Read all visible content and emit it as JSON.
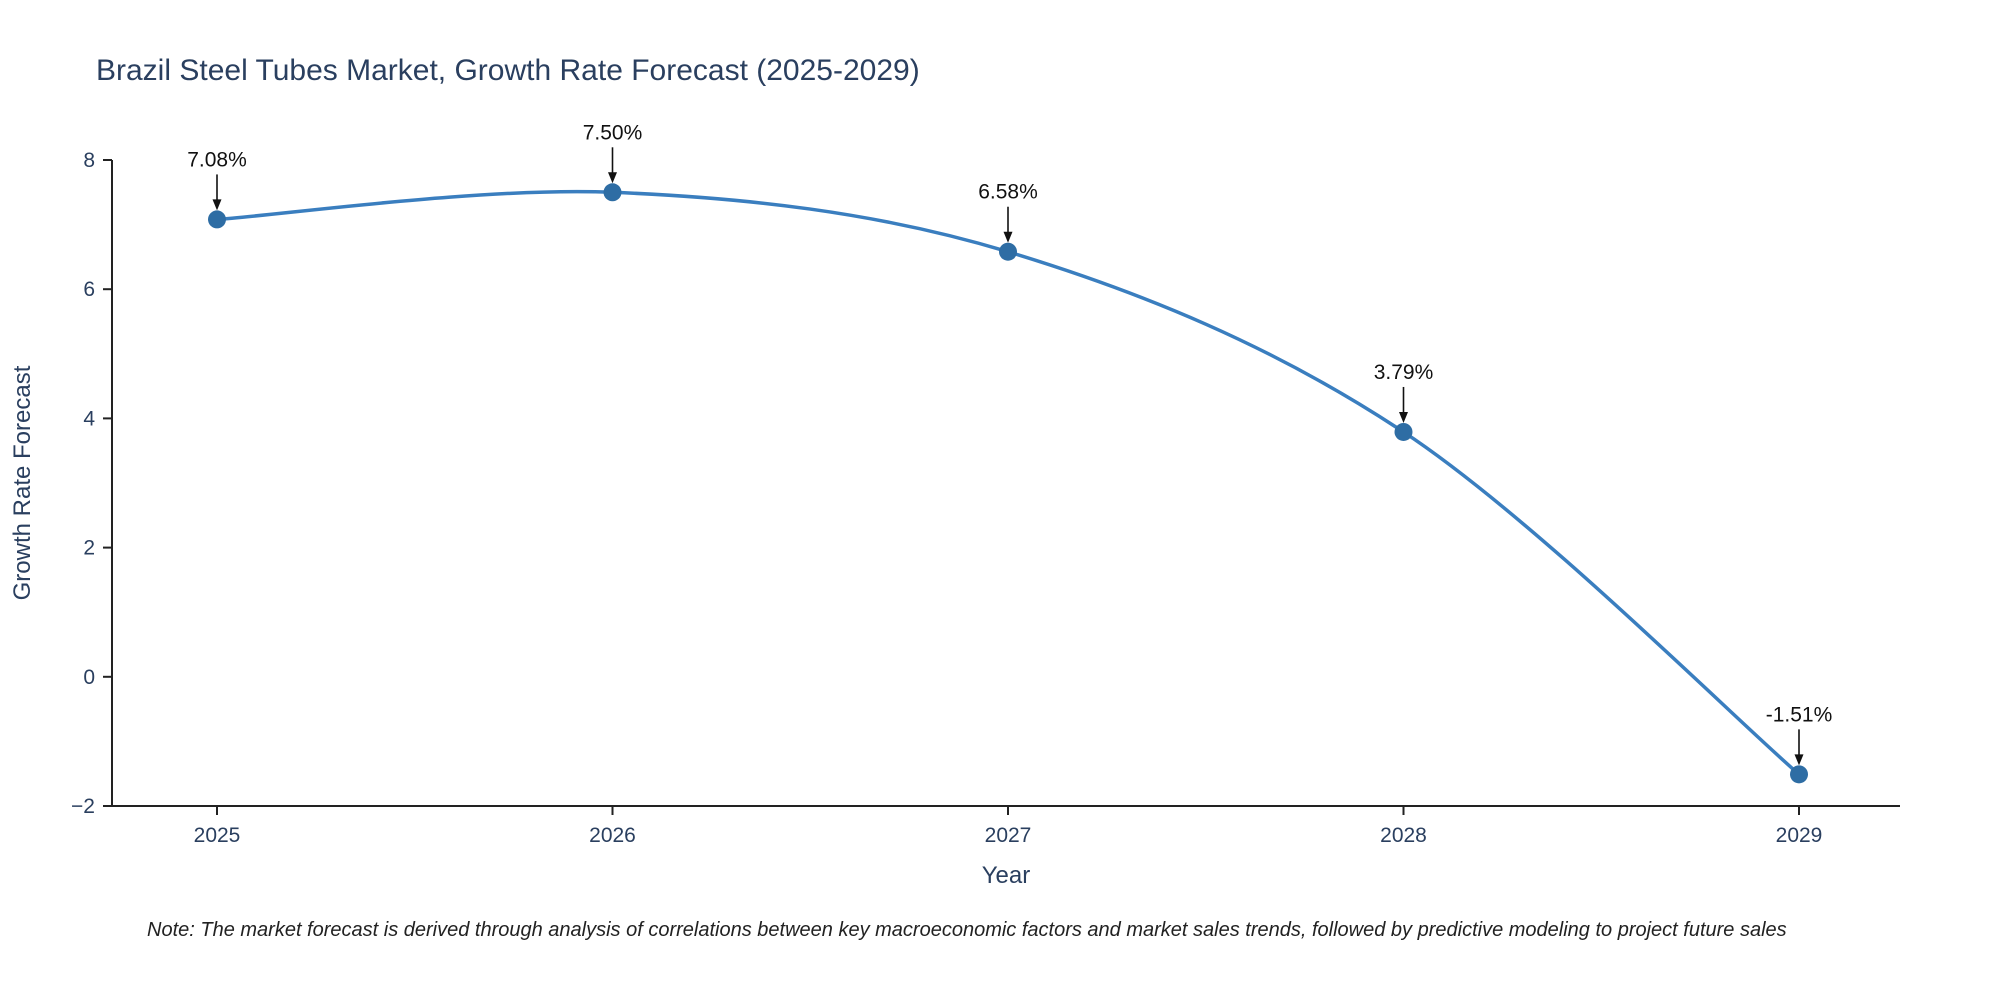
{
  "chart_data": {
    "type": "line",
    "title": "Brazil Steel Tubes Market, Growth Rate Forecast (2025-2029)",
    "xlabel": "Year",
    "ylabel": "Growth Rate Forecast",
    "x": [
      2025,
      2026,
      2027,
      2028,
      2029
    ],
    "values": [
      7.08,
      7.5,
      6.58,
      3.79,
      -1.51
    ],
    "labels": [
      "7.08%",
      "7.50%",
      "6.58%",
      "3.79%",
      "-1.51%"
    ],
    "ylim": [
      -2,
      8
    ],
    "yticks": [
      -2,
      0,
      2,
      4,
      6,
      8
    ],
    "line_shape": "spline",
    "grid": false,
    "legend": "none",
    "colors": {
      "line": "#3a7ebf",
      "marker": "#2e6da4",
      "title": "#2a3f5f",
      "axis": "#222222",
      "tick_label": "#2a3f5f",
      "axis_title": "#2a3f5f",
      "annotation": "#111111",
      "arrow": "#111111",
      "background": "#ffffff"
    }
  },
  "note": "Note: The market forecast is derived through analysis of correlations between key macroeconomic factors and market sales trends, followed by predictive modeling to project future sales"
}
